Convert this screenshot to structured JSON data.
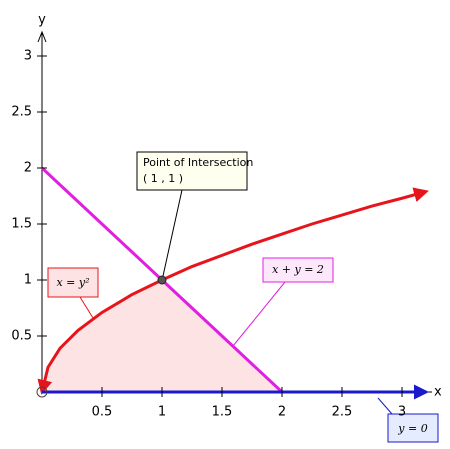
{
  "chart_data": {
    "type": "line",
    "xlabel": "x",
    "ylabel": "y",
    "xlim": [
      0,
      3.2
    ],
    "ylim": [
      0,
      3.2
    ],
    "xticks": [
      0.5,
      1,
      1.5,
      2,
      2.5,
      3
    ],
    "yticks": [
      0.5,
      1,
      1.5,
      2,
      2.5,
      3
    ],
    "series": [
      {
        "name": "x = y²",
        "color": "#e8141b",
        "x": [
          0,
          0.05,
          0.15,
          0.3,
          0.5,
          0.75,
          1,
          1.25,
          1.5,
          1.75,
          2,
          2.25,
          2.5,
          2.75,
          3,
          3.2
        ],
        "values": [
          0,
          0.22,
          0.39,
          0.55,
          0.71,
          0.87,
          1,
          1.12,
          1.22,
          1.32,
          1.41,
          1.5,
          1.58,
          1.66,
          1.73,
          1.79
        ]
      },
      {
        "name": "x + y = 2",
        "color": "#e020e0",
        "x": [
          0,
          1,
          2
        ],
        "values": [
          2,
          1,
          0
        ]
      },
      {
        "name": "y = 0",
        "color": "#1a1acc",
        "x": [
          0,
          3.2
        ],
        "values": [
          0,
          0
        ]
      }
    ],
    "shade_color": "#fde3e3",
    "intersection": {
      "x": 1,
      "y": 1,
      "label": "Point of Intersection",
      "coords": "( 1 , 1 )"
    }
  }
}
